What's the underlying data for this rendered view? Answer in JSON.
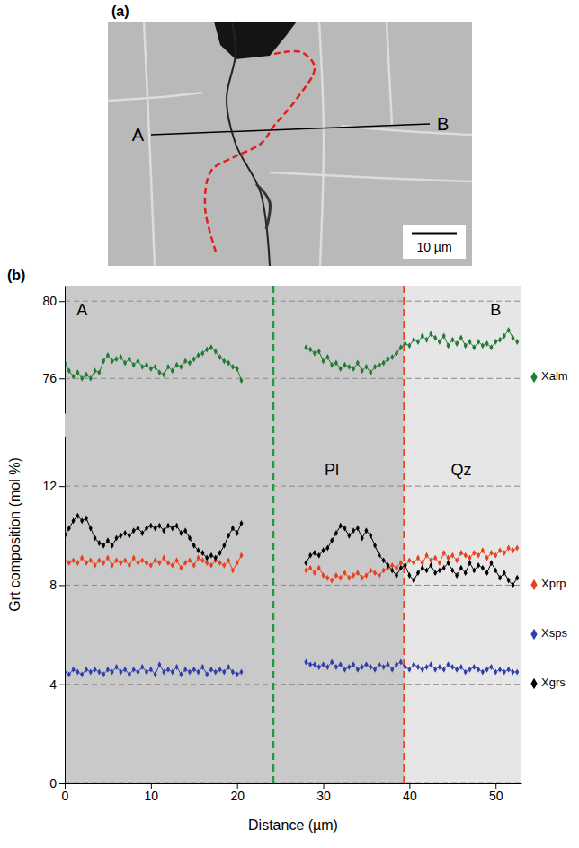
{
  "image_panel": {
    "panel_label": "(a)",
    "line_labels": [
      "A",
      "B"
    ],
    "scale_bar": "10 µm"
  },
  "chart_data": [
    {
      "type": "line",
      "panel_label": "(b)",
      "x": [
        0,
        0.5,
        1,
        1.5,
        2,
        2.5,
        3,
        3.5,
        4,
        4.5,
        5,
        5.5,
        6,
        6.5,
        7,
        7.5,
        8,
        8.5,
        9,
        9.5,
        10,
        10.5,
        11,
        11.5,
        12,
        12.5,
        13,
        13.5,
        14,
        14.5,
        15,
        15.5,
        16,
        16.5,
        17,
        17.5,
        18,
        18.5,
        19,
        19.5,
        20,
        20.5,
        24,
        28,
        28.5,
        29,
        29.5,
        30,
        30.5,
        31,
        31.5,
        32,
        32.5,
        33,
        33.5,
        34,
        34.5,
        35,
        35.5,
        36,
        36.5,
        37,
        37.5,
        38,
        38.5,
        39,
        39.5,
        40,
        40.5,
        41,
        41.5,
        42,
        42.5,
        43,
        43.5,
        44,
        44.5,
        45,
        45.5,
        46,
        46.5,
        47,
        47.5,
        48,
        48.5,
        49,
        49.5,
        50,
        50.5,
        51,
        51.5,
        52,
        52.5
      ],
      "xlim": [
        0,
        53
      ],
      "ylim": [
        74.2,
        80.8
      ],
      "yticks": [
        76,
        80
      ],
      "grid": true,
      "legend": "right",
      "tick_labels": "y",
      "marker": "diamond",
      "series": [
        {
          "name": "Xalm",
          "color": "#1e7b34",
          "values": [
            76.8,
            76.4,
            76.1,
            76.3,
            76.0,
            76.2,
            76.0,
            76.4,
            76.3,
            76.9,
            77.2,
            76.9,
            77.0,
            77.1,
            76.8,
            77.0,
            76.7,
            76.9,
            76.6,
            76.7,
            76.5,
            76.6,
            76.3,
            76.2,
            76.6,
            76.4,
            76.7,
            76.6,
            76.9,
            76.8,
            77.0,
            77.2,
            77.3,
            77.5,
            77.6,
            77.4,
            77.1,
            76.9,
            76.8,
            76.6,
            76.5,
            75.9,
            null,
            77.6,
            77.5,
            77.3,
            77.4,
            76.9,
            77.1,
            76.7,
            76.8,
            76.5,
            76.7,
            76.6,
            76.5,
            76.8,
            76.4,
            76.6,
            76.3,
            76.6,
            76.7,
            76.8,
            77.0,
            77.1,
            77.3,
            77.6,
            77.8,
            77.7,
            78.0,
            77.9,
            78.2,
            78.0,
            78.3,
            78.1,
            77.9,
            78.2,
            77.7,
            78.0,
            77.8,
            78.1,
            77.7,
            77.9,
            77.6,
            77.9,
            77.7,
            77.8,
            77.6,
            77.9,
            78.0,
            78.2,
            78.5,
            78.1,
            77.9
          ]
        }
      ],
      "annotations": [
        {
          "text": "A",
          "x": 2,
          "y": 79.5
        },
        {
          "text": "B",
          "x": 50,
          "y": 79.5
        }
      ]
    },
    {
      "type": "line",
      "x": [
        0,
        0.5,
        1,
        1.5,
        2,
        2.5,
        3,
        3.5,
        4,
        4.5,
        5,
        5.5,
        6,
        6.5,
        7,
        7.5,
        8,
        8.5,
        9,
        9.5,
        10,
        10.5,
        11,
        11.5,
        12,
        12.5,
        13,
        13.5,
        14,
        14.5,
        15,
        15.5,
        16,
        16.5,
        17,
        17.5,
        18,
        18.5,
        19,
        19.5,
        20,
        20.5,
        24,
        28,
        28.5,
        29,
        29.5,
        30,
        30.5,
        31,
        31.5,
        32,
        32.5,
        33,
        33.5,
        34,
        34.5,
        35,
        35.5,
        36,
        36.5,
        37,
        37.5,
        38,
        38.5,
        39,
        39.5,
        40,
        40.5,
        41,
        41.5,
        42,
        42.5,
        43,
        43.5,
        44,
        44.5,
        45,
        45.5,
        46,
        46.5,
        47,
        47.5,
        48,
        48.5,
        49,
        49.5,
        50,
        50.5,
        51,
        51.5,
        52,
        52.5
      ],
      "xlim": [
        0,
        53
      ],
      "xticks": [
        0,
        10,
        20,
        30,
        40,
        50
      ],
      "ylim": [
        0,
        14
      ],
      "yticks": [
        0,
        4,
        8,
        12
      ],
      "xlabel": "Distance (µm)",
      "ylabel": "Grt composition (mol %)",
      "grid": true,
      "legend": "right",
      "marker": "diamond",
      "series": [
        {
          "name": "Xprp",
          "color": "#e8401c",
          "values": [
            9.0,
            8.9,
            9.0,
            8.9,
            9.1,
            8.9,
            9.0,
            8.8,
            9.0,
            8.9,
            9.1,
            8.8,
            9.0,
            8.9,
            9.0,
            8.8,
            9.1,
            8.9,
            9.0,
            8.9,
            8.8,
            9.0,
            8.9,
            9.1,
            8.9,
            8.8,
            9.0,
            8.7,
            8.9,
            9.0,
            8.8,
            9.1,
            9.0,
            8.9,
            8.8,
            9.0,
            8.9,
            8.8,
            9.0,
            8.6,
            8.9,
            9.2,
            null,
            8.6,
            8.7,
            8.5,
            8.7,
            8.4,
            8.3,
            8.2,
            8.4,
            8.3,
            8.5,
            8.3,
            8.4,
            8.5,
            8.3,
            8.4,
            8.6,
            8.5,
            8.4,
            8.6,
            8.7,
            8.8,
            8.7,
            8.9,
            8.8,
            9.0,
            8.9,
            9.1,
            8.9,
            9.2,
            9.0,
            9.1,
            8.9,
            9.3,
            9.1,
            9.2,
            9.0,
            9.3,
            9.2,
            9.1,
            9.3,
            9.2,
            9.4,
            9.1,
            9.3,
            9.2,
            9.4,
            9.3,
            9.5,
            9.4,
            9.5
          ]
        },
        {
          "name": "Xsps",
          "color": "#2e3fa8",
          "values": [
            4.5,
            4.4,
            4.6,
            4.5,
            4.4,
            4.6,
            4.5,
            4.6,
            4.5,
            4.4,
            4.6,
            4.5,
            4.7,
            4.5,
            4.6,
            4.4,
            4.6,
            4.5,
            4.7,
            4.5,
            4.6,
            4.4,
            4.8,
            4.5,
            4.6,
            4.5,
            4.7,
            4.4,
            4.6,
            4.5,
            4.6,
            4.5,
            4.7,
            4.4,
            4.6,
            4.5,
            4.6,
            4.5,
            4.7,
            4.5,
            4.4,
            4.5,
            null,
            4.9,
            4.8,
            4.8,
            4.7,
            4.8,
            4.7,
            4.9,
            4.7,
            4.8,
            4.6,
            4.7,
            4.8,
            4.6,
            4.7,
            4.8,
            4.7,
            4.6,
            4.8,
            4.7,
            4.8,
            4.6,
            4.8,
            4.9,
            4.7,
            4.6,
            4.8,
            4.7,
            4.6,
            4.7,
            4.8,
            4.6,
            4.7,
            4.6,
            4.8,
            4.7,
            4.6,
            4.7,
            4.5,
            4.6,
            4.7,
            4.6,
            4.5,
            4.6,
            4.7,
            4.5,
            4.6,
            4.5,
            4.6,
            4.5,
            4.5
          ]
        },
        {
          "name": "Xgrs",
          "color": "#000000",
          "values": [
            10.0,
            10.3,
            10.6,
            10.8,
            10.6,
            10.7,
            10.3,
            9.9,
            9.7,
            9.6,
            9.8,
            9.6,
            9.9,
            10.0,
            10.1,
            10.0,
            10.2,
            10.3,
            10.1,
            10.3,
            10.4,
            10.3,
            10.4,
            10.2,
            10.4,
            10.3,
            10.4,
            10.1,
            10.2,
            9.9,
            9.6,
            9.4,
            9.3,
            9.1,
            9.2,
            9.1,
            9.3,
            9.6,
            10.0,
            10.3,
            10.1,
            10.5,
            null,
            8.9,
            9.2,
            9.3,
            9.2,
            9.4,
            9.5,
            9.8,
            10.1,
            10.4,
            10.3,
            10.0,
            10.2,
            10.3,
            9.9,
            10.2,
            10.0,
            9.6,
            9.2,
            9.0,
            8.8,
            8.6,
            8.4,
            8.7,
            8.8,
            8.4,
            8.2,
            8.5,
            8.7,
            8.6,
            8.8,
            8.5,
            8.6,
            8.7,
            8.9,
            8.6,
            8.4,
            8.7,
            8.5,
            8.9,
            8.6,
            8.8,
            8.7,
            8.5,
            8.9,
            8.6,
            8.3,
            8.5,
            8.2,
            8.0,
            8.3
          ]
        }
      ],
      "regions": [
        {
          "x0": 0,
          "x1": 39.4,
          "color": "#c9c9c9"
        },
        {
          "x0": 39.4,
          "x1": 53,
          "color": "#e6e6e6"
        }
      ],
      "vlines": [
        {
          "x": 24.2,
          "color": "#1e9a3c"
        },
        {
          "x": 39.4,
          "color": "#e8401c"
        }
      ],
      "annotations": [
        {
          "text": "Pl",
          "x": 31,
          "y": 12.6
        },
        {
          "text": "Qz",
          "x": 46,
          "y": 12.6
        }
      ]
    }
  ]
}
